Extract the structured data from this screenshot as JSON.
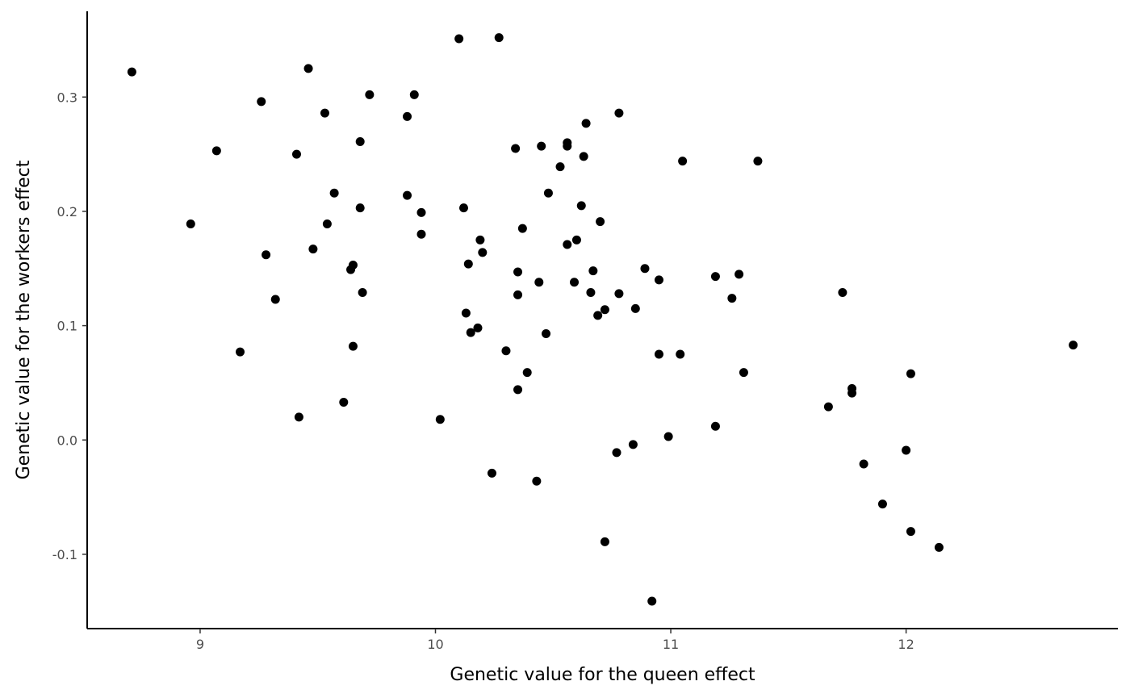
{
  "chart_data": {
    "type": "scatter",
    "xlabel": "Genetic value for the queen effect",
    "ylabel": "Genetic value for the workers effect",
    "xlim": [
      8.52,
      12.9
    ],
    "ylim": [
      -0.165,
      0.375
    ],
    "x_ticks": [
      9,
      10,
      11,
      12
    ],
    "y_ticks": [
      -0.1,
      0.0,
      0.1,
      0.2,
      0.3
    ],
    "x_tick_labels": [
      "9",
      "10",
      "11",
      "12"
    ],
    "y_tick_labels": [
      "-0.1",
      "0.0",
      "0.1",
      "0.2",
      "0.3"
    ],
    "grid": false,
    "point_color": "#000000",
    "points": [
      [
        8.71,
        0.322
      ],
      [
        8.96,
        0.189
      ],
      [
        9.07,
        0.253
      ],
      [
        9.17,
        0.077
      ],
      [
        9.26,
        0.296
      ],
      [
        9.28,
        0.162
      ],
      [
        9.32,
        0.123
      ],
      [
        9.41,
        0.25
      ],
      [
        9.42,
        0.02
      ],
      [
        9.46,
        0.325
      ],
      [
        9.48,
        0.167
      ],
      [
        9.53,
        0.286
      ],
      [
        9.54,
        0.189
      ],
      [
        9.57,
        0.216
      ],
      [
        9.61,
        0.033
      ],
      [
        9.64,
        0.149
      ],
      [
        9.65,
        0.153
      ],
      [
        9.65,
        0.082
      ],
      [
        9.68,
        0.261
      ],
      [
        9.68,
        0.203
      ],
      [
        9.69,
        0.129
      ],
      [
        9.72,
        0.302
      ],
      [
        9.88,
        0.283
      ],
      [
        9.88,
        0.214
      ],
      [
        9.91,
        0.302
      ],
      [
        9.94,
        0.199
      ],
      [
        9.94,
        0.18
      ],
      [
        10.02,
        0.018
      ],
      [
        10.1,
        0.351
      ],
      [
        10.12,
        0.203
      ],
      [
        10.13,
        0.111
      ],
      [
        10.14,
        0.154
      ],
      [
        10.15,
        0.094
      ],
      [
        10.18,
        0.098
      ],
      [
        10.19,
        0.175
      ],
      [
        10.2,
        0.164
      ],
      [
        10.24,
        -0.029
      ],
      [
        10.27,
        0.352
      ],
      [
        10.3,
        0.078
      ],
      [
        10.34,
        0.255
      ],
      [
        10.35,
        0.147
      ],
      [
        10.35,
        0.127
      ],
      [
        10.35,
        0.044
      ],
      [
        10.37,
        0.185
      ],
      [
        10.39,
        0.059
      ],
      [
        10.43,
        -0.036
      ],
      [
        10.44,
        0.138
      ],
      [
        10.45,
        0.257
      ],
      [
        10.47,
        0.093
      ],
      [
        10.48,
        0.216
      ],
      [
        10.53,
        0.239
      ],
      [
        10.56,
        0.257
      ],
      [
        10.56,
        0.26
      ],
      [
        10.56,
        0.171
      ],
      [
        10.59,
        0.138
      ],
      [
        10.6,
        0.175
      ],
      [
        10.62,
        0.205
      ],
      [
        10.63,
        0.248
      ],
      [
        10.64,
        0.277
      ],
      [
        10.66,
        0.129
      ],
      [
        10.67,
        0.148
      ],
      [
        10.69,
        0.109
      ],
      [
        10.7,
        0.191
      ],
      [
        10.72,
        0.114
      ],
      [
        10.72,
        -0.089
      ],
      [
        10.77,
        -0.011
      ],
      [
        10.78,
        0.286
      ],
      [
        10.78,
        0.128
      ],
      [
        10.84,
        -0.004
      ],
      [
        10.85,
        0.115
      ],
      [
        10.89,
        0.15
      ],
      [
        10.92,
        -0.141
      ],
      [
        10.95,
        0.14
      ],
      [
        10.95,
        0.075
      ],
      [
        10.99,
        0.003
      ],
      [
        11.04,
        0.075
      ],
      [
        11.05,
        0.244
      ],
      [
        11.19,
        0.143
      ],
      [
        11.19,
        0.012
      ],
      [
        11.26,
        0.124
      ],
      [
        11.29,
        0.145
      ],
      [
        11.31,
        0.059
      ],
      [
        11.37,
        0.244
      ],
      [
        11.67,
        0.029
      ],
      [
        11.73,
        0.129
      ],
      [
        11.77,
        0.045
      ],
      [
        11.77,
        0.041
      ],
      [
        11.82,
        -0.021
      ],
      [
        11.9,
        -0.056
      ],
      [
        12.0,
        -0.009
      ],
      [
        12.02,
        0.058
      ],
      [
        12.02,
        -0.08
      ],
      [
        12.14,
        -0.094
      ],
      [
        12.71,
        0.083
      ]
    ]
  }
}
